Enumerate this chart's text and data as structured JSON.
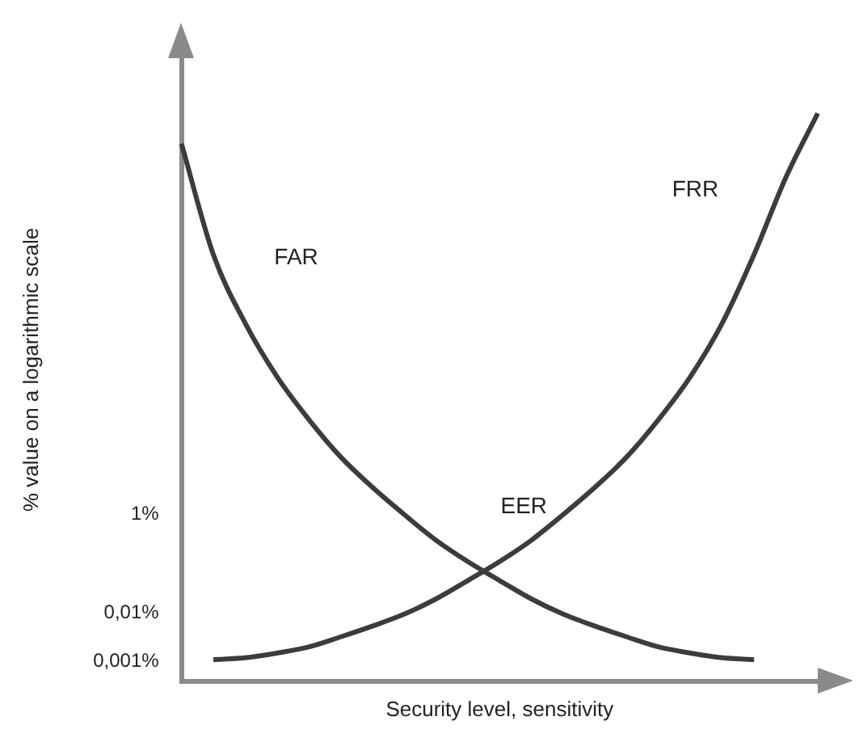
{
  "chart_data": {
    "type": "line",
    "xlabel": "Security level, sensitivity",
    "ylabel": "% value on a logarithmic scale",
    "categories": [
      null,
      null,
      null,
      null,
      null,
      null,
      null,
      null,
      null,
      null,
      null,
      null,
      null,
      null,
      null,
      null,
      null,
      null,
      null,
      null,
      null
    ],
    "series": [
      {
        "name": "FAR",
        "color": "#3c3c3c",
        "values": [
          36000000,
          200000,
          8000,
          650,
          87,
          15,
          3.6,
          1,
          0.3,
          0.11,
          0.045,
          0.019,
          0.0093,
          0.0053,
          0.0032,
          0.002,
          0.0015,
          0.0012,
          0.0011,
          null,
          null
        ]
      },
      {
        "name": "FRR",
        "color": "#3c3c3c",
        "values": [
          null,
          0.0011,
          0.0012,
          0.0015,
          0.002,
          0.0032,
          0.0053,
          0.0093,
          0.019,
          0.045,
          0.11,
          0.3,
          1,
          3.6,
          15,
          87,
          650,
          8000,
          200000,
          7500000,
          150000000
        ]
      }
    ],
    "annotations": [
      "EER"
    ],
    "log": "y",
    "ylim": [
      0.0004,
      2000000000
    ],
    "yticks": [
      {
        "value": 0.001,
        "label": "0,001%"
      },
      {
        "value": 0.01,
        "label": "0,01%"
      },
      {
        "value": 1,
        "label": "1%"
      }
    ],
    "tick_labels": "y",
    "grid": false,
    "legend": false,
    "marker": "none",
    "line_style": "solid"
  }
}
